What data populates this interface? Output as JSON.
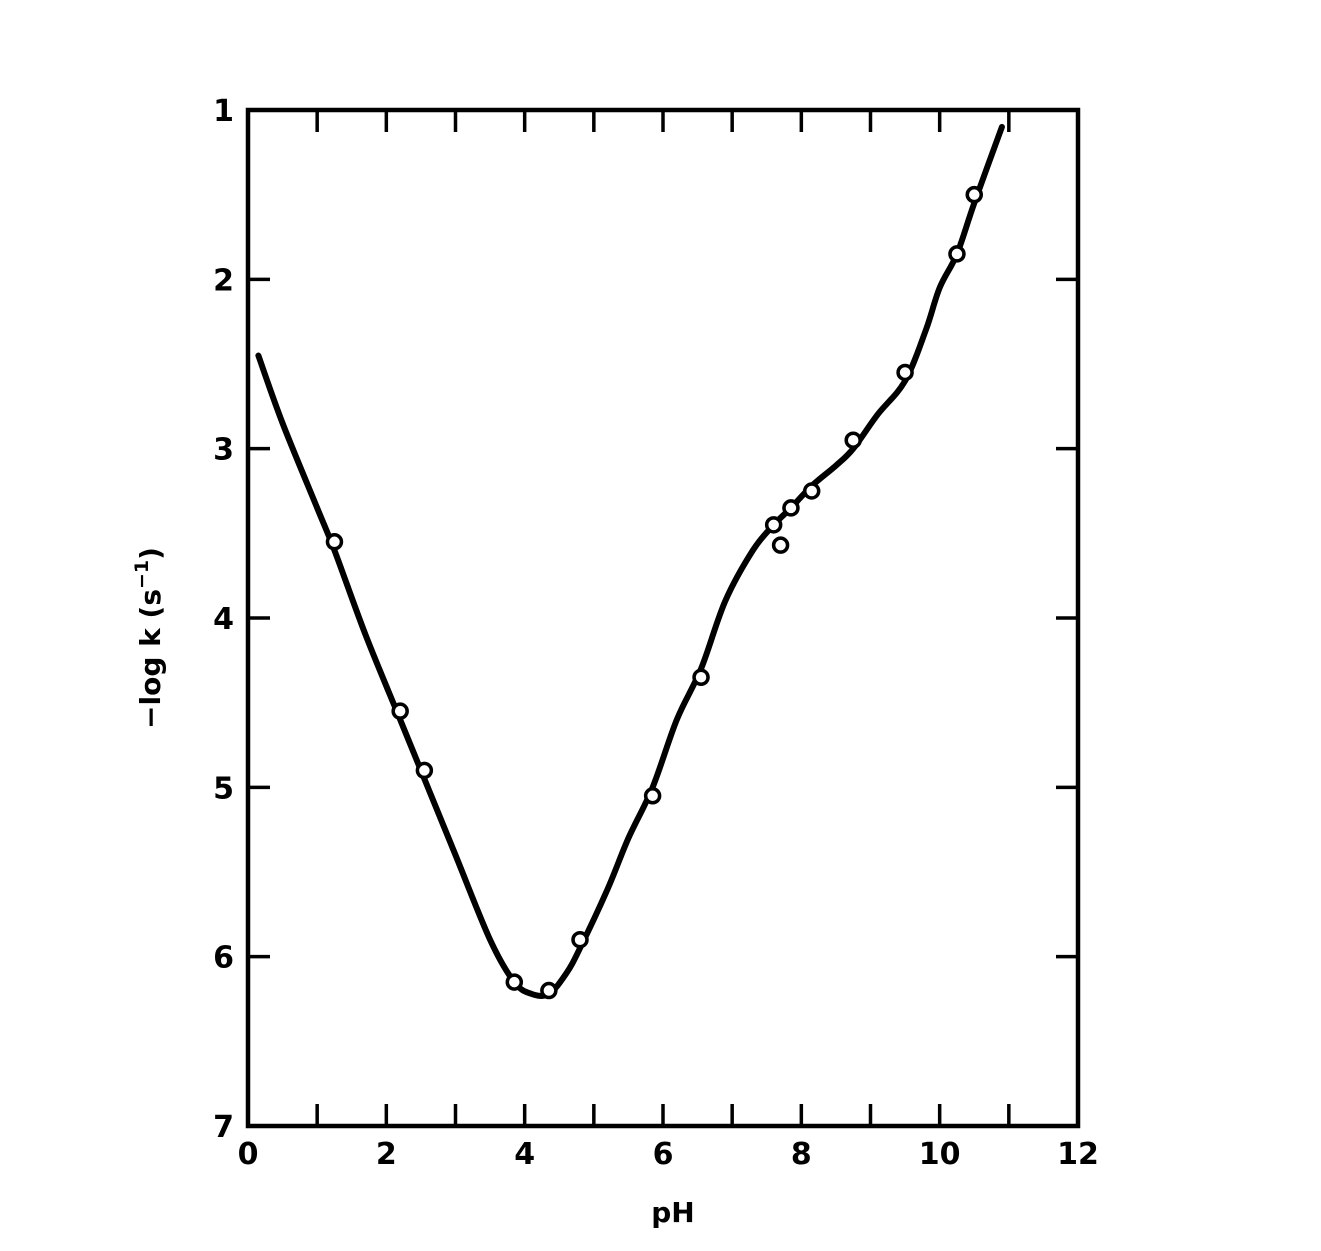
{
  "chart_data": {
    "type": "scatter",
    "xlabel": "pH",
    "ylabel": "−log k (s",
    "ylabel_superscript": "−1",
    "ylabel_suffix": ")",
    "xlim": [
      0,
      12
    ],
    "ylim": [
      1,
      7
    ],
    "y_inverted": true,
    "x_ticks": [
      0,
      2,
      4,
      6,
      8,
      10,
      12
    ],
    "x_minor_ticks": [
      1,
      3,
      5,
      7,
      9,
      11
    ],
    "y_ticks": [
      1,
      2,
      3,
      4,
      5,
      6,
      7
    ],
    "grid": false,
    "legend": "none",
    "series": [
      {
        "kind": "points",
        "x": [
          1.25,
          2.2,
          2.55,
          3.85,
          4.35,
          4.8,
          5.85,
          6.55,
          7.6,
          7.7,
          7.85,
          8.15,
          8.75,
          9.5,
          10.25,
          10.5
        ],
        "y": [
          3.55,
          4.55,
          4.9,
          6.15,
          6.2,
          5.9,
          5.05,
          4.35,
          3.45,
          3.57,
          3.35,
          3.25,
          2.95,
          2.55,
          1.85,
          1.5
        ]
      },
      {
        "kind": "fitted-curve",
        "x": [
          0.15,
          0.5,
          1.0,
          1.25,
          1.7,
          2.2,
          2.55,
          3.0,
          3.5,
          3.85,
          4.1,
          4.35,
          4.6,
          4.8,
          5.2,
          5.5,
          5.85,
          6.2,
          6.55,
          6.9,
          7.3,
          7.6,
          7.85,
          8.15,
          8.5,
          8.75,
          9.1,
          9.5,
          9.8,
          10.0,
          10.25,
          10.5,
          10.9
        ],
        "y": [
          2.45,
          2.85,
          3.35,
          3.6,
          4.1,
          4.6,
          4.95,
          5.4,
          5.9,
          6.15,
          6.22,
          6.22,
          6.1,
          5.95,
          5.6,
          5.3,
          5.0,
          4.6,
          4.3,
          3.9,
          3.6,
          3.45,
          3.35,
          3.22,
          3.1,
          3.0,
          2.8,
          2.6,
          2.3,
          2.05,
          1.85,
          1.55,
          1.1
        ]
      }
    ]
  }
}
